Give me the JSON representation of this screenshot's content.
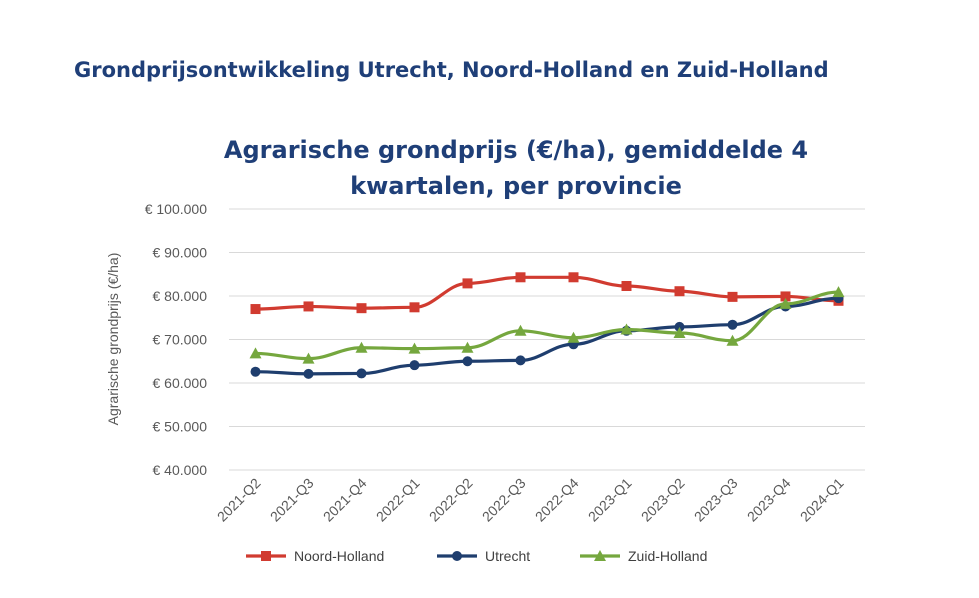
{
  "page": {
    "heading": "Grondprijsontwikkeling Utrecht, Noord-Holland en Zuid-Holland"
  },
  "chart_data": {
    "type": "line",
    "title_lines": [
      "Agrarische grondprijs (€/ha), gemiddelde 4",
      "kwartalen, per provincie"
    ],
    "xlabel": "",
    "ylabel": "Agrarische grondprijs (€/ha)",
    "ylim": [
      40000,
      100000
    ],
    "ytick_values": [
      40000,
      50000,
      60000,
      70000,
      80000,
      90000,
      100000
    ],
    "ytick_labels": [
      "€ 40.000",
      "€ 50.000",
      "€ 60.000",
      "€ 70.000",
      "€ 80.000",
      "€ 90.000",
      "€ 100.000"
    ],
    "grid": true,
    "legend_position": "bottom",
    "categories": [
      "2021-Q2",
      "2021-Q3",
      "2021-Q4",
      "2022-Q1",
      "2022-Q2",
      "2022-Q3",
      "2022-Q4",
      "2023-Q1",
      "2023-Q2",
      "2023-Q3",
      "2023-Q4",
      "2024-Q1"
    ],
    "series": [
      {
        "name": "Noord-Holland",
        "color": "#d13b30",
        "marker": "square",
        "values": [
          77000,
          77600,
          77200,
          77400,
          82900,
          84300,
          84300,
          82300,
          81100,
          79800,
          79900,
          78900
        ]
      },
      {
        "name": "Utrecht",
        "color": "#1f3e6e",
        "marker": "circle",
        "values": [
          62600,
          62100,
          62200,
          64100,
          65000,
          65200,
          68900,
          72000,
          72900,
          73400,
          77600,
          79500
        ]
      },
      {
        "name": "Zuid-Holland",
        "color": "#75a73e",
        "marker": "triangle",
        "values": [
          66800,
          65600,
          68100,
          67900,
          68100,
          72000,
          70400,
          72300,
          71500,
          69700,
          78200,
          80900
        ]
      }
    ]
  }
}
